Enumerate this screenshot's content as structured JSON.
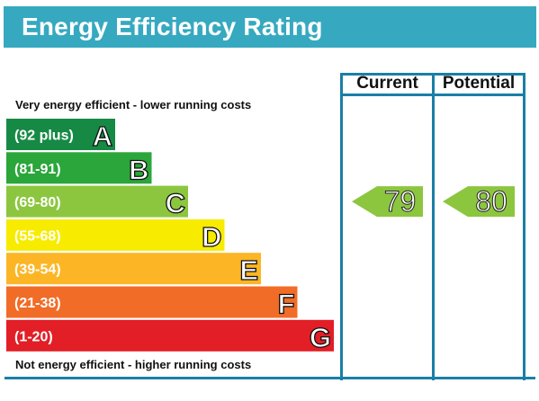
{
  "header": {
    "title": "Energy Efficiency Rating",
    "color": "#36a9c0"
  },
  "captions": {
    "top": "Very energy efficient - lower running costs",
    "bottom": "Not energy efficient - higher running costs"
  },
  "columns": {
    "current": "Current",
    "potential": "Potential"
  },
  "chart_data": {
    "type": "bar",
    "title": "Energy Efficiency Rating",
    "bands": [
      {
        "range": "(92 plus)",
        "letter": "A",
        "color": "#168a44"
      },
      {
        "range": "(81-91)",
        "letter": "B",
        "color": "#2aa63a"
      },
      {
        "range": "(69-80)",
        "letter": "C",
        "color": "#8cc63f"
      },
      {
        "range": "(55-68)",
        "letter": "D",
        "color": "#f7ec00"
      },
      {
        "range": "(39-54)",
        "letter": "E",
        "color": "#fcb625"
      },
      {
        "range": "(21-38)",
        "letter": "F",
        "color": "#f16c27"
      },
      {
        "range": "(1-20)",
        "letter": "G",
        "color": "#e21e26"
      }
    ],
    "current": {
      "value": 79,
      "band": "C",
      "color": "#8cc63f"
    },
    "potential": {
      "value": 80,
      "band": "C",
      "color": "#8cc63f"
    }
  }
}
